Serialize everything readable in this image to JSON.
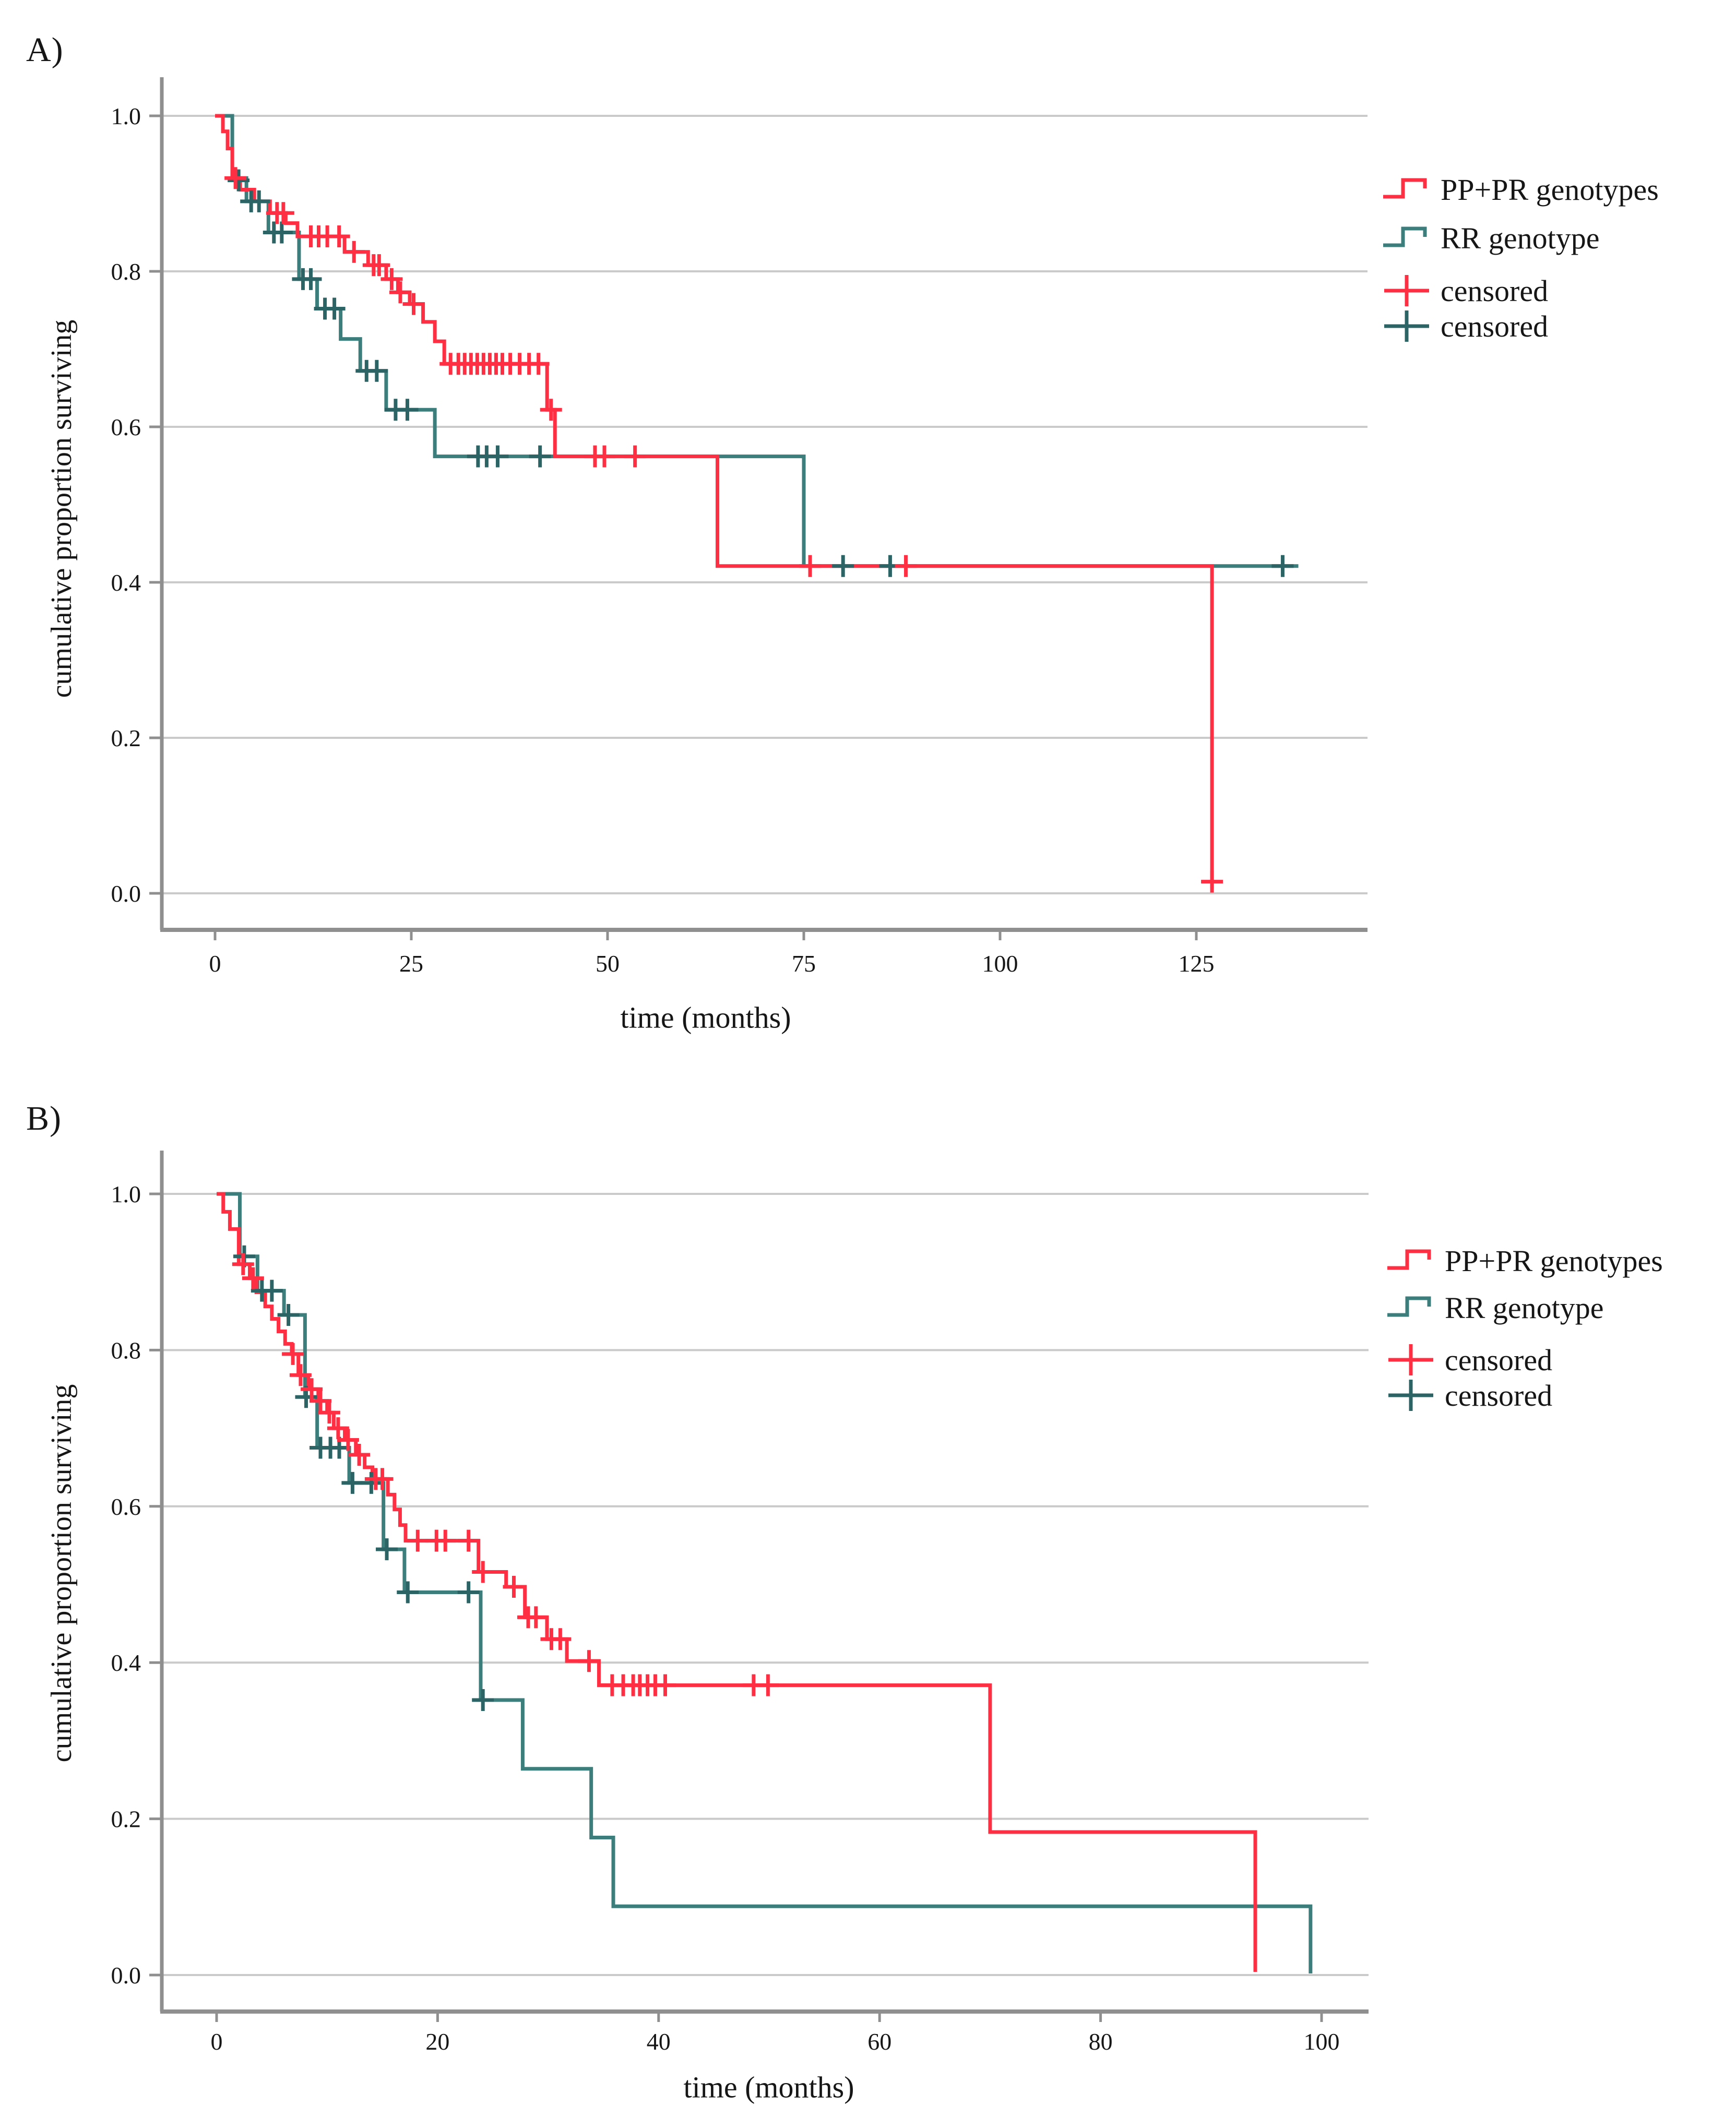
{
  "figure": {
    "background": "#ffffff"
  },
  "colors": {
    "pp_pr": "#FF2F43",
    "rr": "#3B7E7C",
    "rr_censor": "#2C6365",
    "pp_pr_censor": "#FF2F43",
    "grid": "#CACACA",
    "axis": "#8F8F8F",
    "text": "#161616"
  },
  "panels": [
    {
      "label": "A)",
      "legend": {
        "items": [
          {
            "label": "PP+PR genotypes",
            "icon": "step-line-icon",
            "color_key": "pp_pr"
          },
          {
            "label": "RR genotype",
            "icon": "step-line-icon",
            "color_key": "rr"
          },
          {
            "label": "censored",
            "icon": "plus-cross-icon",
            "color_key": "pp_pr_censor"
          },
          {
            "label": "censored",
            "icon": "plus-cross-icon",
            "color_key": "rr_censor"
          }
        ]
      },
      "chart_data": {
        "type": "line",
        "variant": "kaplan_meier_step",
        "title": "",
        "xlabel": "time (months)",
        "ylabel": "cumulative proportion surviving",
        "xlim": [
          0,
          145
        ],
        "ylim": [
          0,
          1.05
        ],
        "x_ticks": [
          0,
          25,
          50,
          75,
          100,
          125
        ],
        "y_ticks": [
          "1.0",
          "0.8",
          "0.6",
          "0.4",
          "0.2",
          "0.0"
        ],
        "grid": "horizontal",
        "legend_position": "right",
        "series": [
          {
            "name": "PP+PR genotypes",
            "color_key": "pp_pr",
            "censor_color_key": "pp_pr_censor",
            "steps": [
              [
                0,
                1.0
              ],
              [
                1,
                0.98
              ],
              [
                1.6,
                0.958
              ],
              [
                2.2,
                0.92
              ],
              [
                3.2,
                0.905
              ],
              [
                5,
                0.89
              ],
              [
                7,
                0.875
              ],
              [
                9,
                0.862
              ],
              [
                10.5,
                0.845
              ],
              [
                16.5,
                0.825
              ],
              [
                19.5,
                0.808
              ],
              [
                21.8,
                0.79
              ],
              [
                23.3,
                0.773
              ],
              [
                24.8,
                0.758
              ],
              [
                26.5,
                0.735
              ],
              [
                28,
                0.71
              ],
              [
                29.2,
                0.681
              ],
              [
                42.3,
                0.622
              ],
              [
                43.3,
                0.562
              ],
              [
                64,
                0.421
              ],
              [
                127,
                0.006
              ]
            ],
            "censored": [
              [
                2.6,
                0.92
              ],
              [
                7.9,
                0.875
              ],
              [
                8.7,
                0.875
              ],
              [
                12.2,
                0.845
              ],
              [
                13.2,
                0.845
              ],
              [
                14.3,
                0.845
              ],
              [
                15.8,
                0.845
              ],
              [
                17.7,
                0.825
              ],
              [
                20.2,
                0.808
              ],
              [
                20.9,
                0.808
              ],
              [
                22.5,
                0.79
              ],
              [
                23.6,
                0.773
              ],
              [
                25.3,
                0.758
              ],
              [
                30,
                0.681
              ],
              [
                31,
                0.681
              ],
              [
                31.8,
                0.681
              ],
              [
                32.6,
                0.681
              ],
              [
                33.4,
                0.681
              ],
              [
                34.2,
                0.681
              ],
              [
                35,
                0.681
              ],
              [
                35.8,
                0.681
              ],
              [
                36.6,
                0.681
              ],
              [
                37.6,
                0.681
              ],
              [
                38.8,
                0.681
              ],
              [
                40,
                0.681
              ],
              [
                41.2,
                0.681
              ],
              [
                42.8,
                0.622
              ],
              [
                48.4,
                0.562
              ],
              [
                49.6,
                0.562
              ],
              [
                53.5,
                0.562
              ],
              [
                75.8,
                0.421
              ],
              [
                88,
                0.421
              ],
              [
                127,
                0.015
              ]
            ]
          },
          {
            "name": "RR genotype",
            "color_key": "rr",
            "censor_color_key": "rr_censor",
            "steps": [
              [
                0,
                1.0
              ],
              [
                2.2,
                0.92
              ],
              [
                4,
                0.89
              ],
              [
                6.8,
                0.85
              ],
              [
                10.7,
                0.79
              ],
              [
                13,
                0.752
              ],
              [
                16,
                0.713
              ],
              [
                18.5,
                0.672
              ],
              [
                21.8,
                0.622
              ],
              [
                28,
                0.562
              ],
              [
                75,
                0.421
              ],
              [
                138,
                0.421
              ]
            ],
            "censored": [
              [
                3,
                0.917
              ],
              [
                4.6,
                0.89
              ],
              [
                5.6,
                0.89
              ],
              [
                7.5,
                0.85
              ],
              [
                8.5,
                0.85
              ],
              [
                11.2,
                0.79
              ],
              [
                12.2,
                0.79
              ],
              [
                14,
                0.752
              ],
              [
                15.2,
                0.752
              ],
              [
                19.3,
                0.672
              ],
              [
                20.6,
                0.672
              ],
              [
                23,
                0.622
              ],
              [
                24.5,
                0.622
              ],
              [
                33.5,
                0.562
              ],
              [
                34.6,
                0.562
              ],
              [
                36,
                0.562
              ],
              [
                41.4,
                0.562
              ],
              [
                80,
                0.421
              ],
              [
                86,
                0.421
              ],
              [
                136,
                0.421
              ]
            ]
          }
        ]
      }
    },
    {
      "label": "B)",
      "legend": {
        "items": [
          {
            "label": "PP+PR genotypes",
            "icon": "step-line-icon",
            "color_key": "pp_pr"
          },
          {
            "label": "RR genotype",
            "icon": "step-line-icon",
            "color_key": "rr"
          },
          {
            "label": "censored",
            "icon": "plus-cross-icon",
            "color_key": "pp_pr_censor"
          },
          {
            "label": "censored",
            "icon": "plus-cross-icon",
            "color_key": "rr_censor"
          }
        ]
      },
      "chart_data": {
        "type": "line",
        "variant": "kaplan_meier_step",
        "title": "",
        "xlabel": "time (months)",
        "ylabel": "cumulative proportion surviving",
        "xlim": [
          0,
          104
        ],
        "ylim": [
          0,
          1.05
        ],
        "x_ticks": [
          0,
          20,
          40,
          60,
          80,
          100
        ],
        "y_ticks": [
          "1.0",
          "0.8",
          "0.6",
          "0.4",
          "0.2",
          "0.0"
        ],
        "grid": "horizontal",
        "legend_position": "right",
        "series": [
          {
            "name": "PP+PR genotypes",
            "color_key": "pp_pr",
            "censor_color_key": "pp_pr_censor",
            "steps": [
              [
                0,
                1.0
              ],
              [
                0.6,
                0.977
              ],
              [
                1.2,
                0.955
              ],
              [
                2,
                0.91
              ],
              [
                3,
                0.892
              ],
              [
                3.6,
                0.874
              ],
              [
                4.4,
                0.856
              ],
              [
                5,
                0.84
              ],
              [
                5.6,
                0.824
              ],
              [
                6.2,
                0.808
              ],
              [
                6.8,
                0.795
              ],
              [
                7.4,
                0.768
              ],
              [
                8.3,
                0.75
              ],
              [
                9.2,
                0.735
              ],
              [
                10,
                0.72
              ],
              [
                10.6,
                0.7
              ],
              [
                11.6,
                0.685
              ],
              [
                12.6,
                0.666
              ],
              [
                13.4,
                0.65
              ],
              [
                14.1,
                0.635
              ],
              [
                15.5,
                0.615
              ],
              [
                16.1,
                0.596
              ],
              [
                16.6,
                0.576
              ],
              [
                17.1,
                0.556
              ],
              [
                23.7,
                0.516
              ],
              [
                26.2,
                0.497
              ],
              [
                27.9,
                0.458
              ],
              [
                29.9,
                0.43
              ],
              [
                31.7,
                0.402
              ],
              [
                34.6,
                0.371
              ],
              [
                70,
                0.183
              ],
              [
                94,
                0.004
              ]
            ],
            "censored": [
              [
                2.4,
                0.91
              ],
              [
                3.3,
                0.892
              ],
              [
                6.9,
                0.795
              ],
              [
                7.6,
                0.768
              ],
              [
                8.6,
                0.75
              ],
              [
                9.4,
                0.735
              ],
              [
                10.2,
                0.72
              ],
              [
                11,
                0.7
              ],
              [
                11.9,
                0.685
              ],
              [
                12.9,
                0.666
              ],
              [
                14.4,
                0.635
              ],
              [
                15,
                0.635
              ],
              [
                18.2,
                0.556
              ],
              [
                19.9,
                0.556
              ],
              [
                20.7,
                0.556
              ],
              [
                22.8,
                0.556
              ],
              [
                24.1,
                0.516
              ],
              [
                26.9,
                0.497
              ],
              [
                28.2,
                0.458
              ],
              [
                28.9,
                0.458
              ],
              [
                30.3,
                0.43
              ],
              [
                31.1,
                0.43
              ],
              [
                33.7,
                0.402
              ],
              [
                35.8,
                0.371
              ],
              [
                36.8,
                0.371
              ],
              [
                37.7,
                0.371
              ],
              [
                38.3,
                0.371
              ],
              [
                39,
                0.371
              ],
              [
                39.7,
                0.371
              ],
              [
                40.6,
                0.371
              ],
              [
                48.6,
                0.371
              ],
              [
                49.9,
                0.371
              ]
            ]
          },
          {
            "name": "RR genotype",
            "color_key": "rr",
            "censor_color_key": "rr_censor",
            "steps": [
              [
                0,
                1.0
              ],
              [
                2.1,
                0.92
              ],
              [
                3.7,
                0.876
              ],
              [
                6.1,
                0.845
              ],
              [
                8,
                0.74
              ],
              [
                9.1,
                0.675
              ],
              [
                12,
                0.63
              ],
              [
                15.1,
                0.545
              ],
              [
                17,
                0.49
              ],
              [
                23.9,
                0.352
              ],
              [
                27.7,
                0.264
              ],
              [
                33.9,
                0.176
              ],
              [
                35.9,
                0.088
              ],
              [
                99,
                0.002
              ]
            ],
            "censored": [
              [
                2.5,
                0.92
              ],
              [
                4.1,
                0.876
              ],
              [
                5,
                0.876
              ],
              [
                6.5,
                0.845
              ],
              [
                8.1,
                0.74
              ],
              [
                9.4,
                0.675
              ],
              [
                10.3,
                0.675
              ],
              [
                11.1,
                0.675
              ],
              [
                12.3,
                0.63
              ],
              [
                14,
                0.63
              ],
              [
                15.4,
                0.545
              ],
              [
                17.3,
                0.49
              ],
              [
                22.8,
                0.49
              ],
              [
                24.1,
                0.352
              ]
            ]
          }
        ]
      }
    }
  ]
}
